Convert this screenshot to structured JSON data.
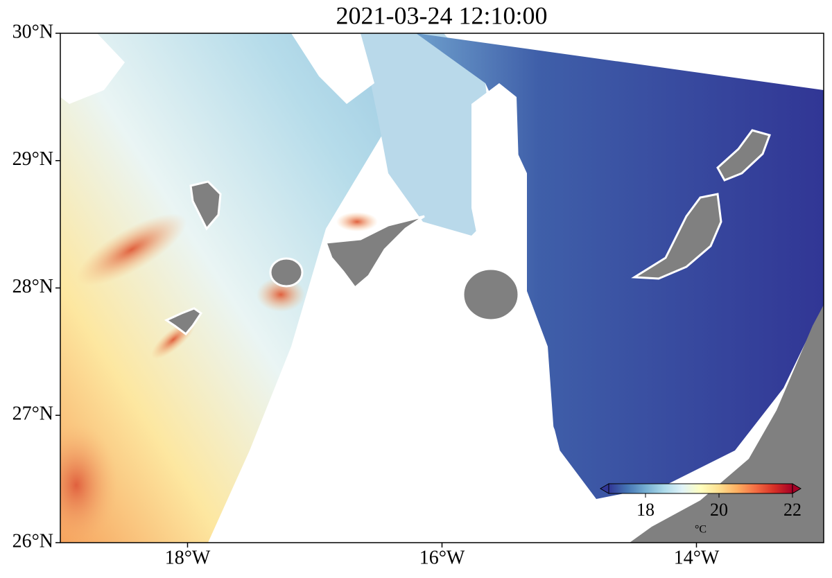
{
  "title": "2021-03-24 12:10:00",
  "map": {
    "xlim": [
      -19,
      -13
    ],
    "ylim": [
      26,
      30
    ],
    "xticks": [
      {
        "value": -18,
        "label": "18°W"
      },
      {
        "value": -16,
        "label": "16°W"
      },
      {
        "value": -14,
        "label": "14°W"
      }
    ],
    "yticks": [
      {
        "value": 26,
        "label": "26°N"
      },
      {
        "value": 27,
        "label": "27°N"
      },
      {
        "value": 28,
        "label": "28°N"
      },
      {
        "value": 29,
        "label": "29°N"
      },
      {
        "value": 30,
        "label": "30°N"
      }
    ]
  },
  "colorbar": {
    "clim": [
      17,
      22
    ],
    "ticks": [
      18,
      20,
      22
    ],
    "label": "°C",
    "colors": [
      "#313695",
      "#4575b4",
      "#74add1",
      "#abd9e9",
      "#e0f3f8",
      "#ffffbf",
      "#fee090",
      "#fdae61",
      "#f46d43",
      "#d73027",
      "#a50026"
    ]
  }
}
